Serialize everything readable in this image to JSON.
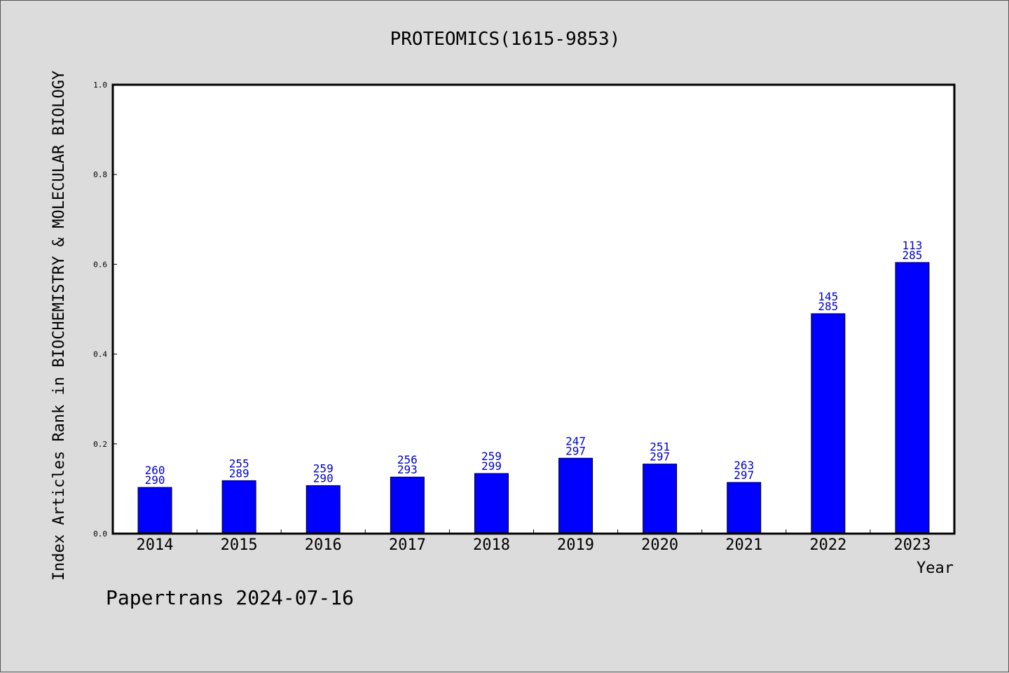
{
  "chart_data": {
    "type": "bar",
    "title": "PROTEOMICS(1615-9853)",
    "xlabel": "Year",
    "ylabel": "Index Articles Rank in BIOCHEMISTRY & MOLECULAR BIOLOGY",
    "ylim": [
      0.0,
      1.0
    ],
    "yticks": [
      "0.0",
      "0.2",
      "0.4",
      "0.6",
      "0.8",
      "1.0"
    ],
    "categories": [
      "2014",
      "2015",
      "2016",
      "2017",
      "2018",
      "2019",
      "2020",
      "2021",
      "2022",
      "2023"
    ],
    "values": [
      0.103,
      0.118,
      0.107,
      0.126,
      0.134,
      0.168,
      0.155,
      0.114,
      0.49,
      0.604
    ],
    "bar_labels": [
      {
        "top": "260",
        "bottom": "290"
      },
      {
        "top": "255",
        "bottom": "289"
      },
      {
        "top": "259",
        "bottom": "290"
      },
      {
        "top": "256",
        "bottom": "293"
      },
      {
        "top": "259",
        "bottom": "299"
      },
      {
        "top": "247",
        "bottom": "297"
      },
      {
        "top": "251",
        "bottom": "297"
      },
      {
        "top": "263",
        "bottom": "297"
      },
      {
        "top": "145",
        "bottom": "285"
      },
      {
        "top": "113",
        "bottom": "285"
      }
    ],
    "bar_color": "#0000ff",
    "label_color": "#0000cc",
    "grid": false
  },
  "footer": {
    "credit": "Papertrans 2024-07-16"
  }
}
